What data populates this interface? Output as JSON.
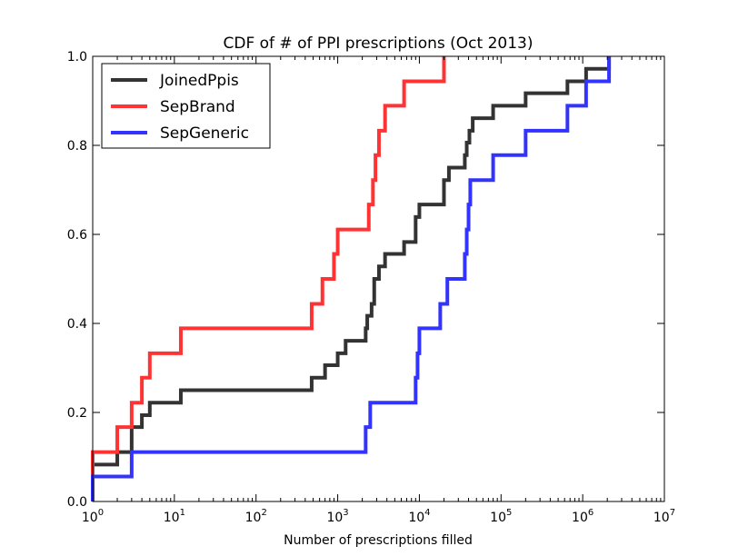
{
  "chart_data": {
    "type": "line",
    "step": "post",
    "title": "CDF of # of PPI prescriptions (Oct 2013)",
    "xlabel": "Number of prescriptions filled",
    "ylabel": "",
    "xscale": "log",
    "xlim": [
      1,
      10000000
    ],
    "ylim": [
      0,
      1.0
    ],
    "grid": false,
    "legend_position": "upper-left",
    "x_ticks": [
      {
        "value": 1,
        "base": "10",
        "exp": "0"
      },
      {
        "value": 10,
        "base": "10",
        "exp": "1"
      },
      {
        "value": 100,
        "base": "10",
        "exp": "2"
      },
      {
        "value": 1000,
        "base": "10",
        "exp": "3"
      },
      {
        "value": 10000,
        "base": "10",
        "exp": "4"
      },
      {
        "value": 100000,
        "base": "10",
        "exp": "5"
      },
      {
        "value": 1000000,
        "base": "10",
        "exp": "6"
      },
      {
        "value": 10000000,
        "base": "10",
        "exp": "7"
      }
    ],
    "y_ticks": [
      {
        "value": 0.0,
        "label": "0.0"
      },
      {
        "value": 0.2,
        "label": "0.2"
      },
      {
        "value": 0.4,
        "label": "0.4"
      },
      {
        "value": 0.6,
        "label": "0.6"
      },
      {
        "value": 0.8,
        "label": "0.8"
      },
      {
        "value": 1.0,
        "label": "1.0"
      }
    ],
    "series": [
      {
        "name": "JoinedPpis",
        "color": "#333333",
        "points": [
          [
            1,
            0.083
          ],
          [
            2,
            0.111
          ],
          [
            3,
            0.167
          ],
          [
            4,
            0.194
          ],
          [
            5,
            0.222
          ],
          [
            12,
            0.25
          ],
          [
            480,
            0.278
          ],
          [
            700,
            0.306
          ],
          [
            1000,
            0.333
          ],
          [
            1250,
            0.361
          ],
          [
            2200,
            0.389
          ],
          [
            2300,
            0.417
          ],
          [
            2600,
            0.444
          ],
          [
            2800,
            0.5
          ],
          [
            3200,
            0.528
          ],
          [
            3800,
            0.556
          ],
          [
            6500,
            0.583
          ],
          [
            9000,
            0.639
          ],
          [
            10000,
            0.667
          ],
          [
            20000,
            0.722
          ],
          [
            23000,
            0.75
          ],
          [
            36000,
            0.778
          ],
          [
            38000,
            0.806
          ],
          [
            41000,
            0.833
          ],
          [
            45000,
            0.861
          ],
          [
            80000,
            0.889
          ],
          [
            200000,
            0.917
          ],
          [
            650000,
            0.944
          ],
          [
            1100000,
            0.972
          ],
          [
            2100000,
            1.0
          ]
        ]
      },
      {
        "name": "SepBrand",
        "color": "#ff3333",
        "points": [
          [
            1,
            0.111
          ],
          [
            2,
            0.167
          ],
          [
            3,
            0.222
          ],
          [
            4,
            0.278
          ],
          [
            5,
            0.333
          ],
          [
            12,
            0.389
          ],
          [
            480,
            0.444
          ],
          [
            650,
            0.5
          ],
          [
            900,
            0.556
          ],
          [
            1000,
            0.611
          ],
          [
            2400,
            0.667
          ],
          [
            2700,
            0.722
          ],
          [
            2900,
            0.778
          ],
          [
            3200,
            0.833
          ],
          [
            3800,
            0.889
          ],
          [
            6500,
            0.944
          ],
          [
            20000,
            1.0
          ]
        ]
      },
      {
        "name": "SepGeneric",
        "color": "#3333ff",
        "points": [
          [
            1,
            0.056
          ],
          [
            3,
            0.111
          ],
          [
            2200,
            0.167
          ],
          [
            2500,
            0.222
          ],
          [
            9000,
            0.278
          ],
          [
            9500,
            0.333
          ],
          [
            10000,
            0.389
          ],
          [
            18000,
            0.444
          ],
          [
            22000,
            0.5
          ],
          [
            36000,
            0.556
          ],
          [
            38000,
            0.611
          ],
          [
            40000,
            0.667
          ],
          [
            42000,
            0.722
          ],
          [
            80000,
            0.778
          ],
          [
            200000,
            0.833
          ],
          [
            650000,
            0.889
          ],
          [
            1100000,
            0.944
          ],
          [
            2100000,
            1.0
          ]
        ]
      }
    ]
  }
}
